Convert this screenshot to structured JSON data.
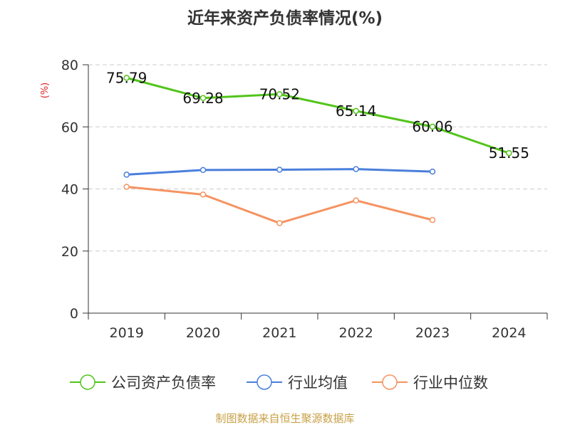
{
  "chart_data": {
    "type": "line",
    "title": "近年来资产负债率情况(%)",
    "ylabel": "(%)",
    "categories": [
      "2019",
      "2020",
      "2021",
      "2022",
      "2023",
      "2024"
    ],
    "ylim": [
      0,
      80
    ],
    "yticks": [
      0,
      20,
      40,
      60,
      80
    ],
    "grid": true,
    "legend_position": "bottom",
    "series": [
      {
        "name": "公司资产负债率",
        "color": "#52c41a",
        "values": [
          75.79,
          69.28,
          70.52,
          65.14,
          60.06,
          51.55
        ],
        "show_labels": true
      },
      {
        "name": "行业均值",
        "color": "#4a7fdc",
        "values": [
          44.6,
          46.1,
          46.2,
          46.4,
          45.6,
          null
        ],
        "show_labels": false
      },
      {
        "name": "行业中位数",
        "color": "#f59361",
        "values": [
          40.7,
          38.2,
          29.0,
          36.3,
          30.0,
          null
        ],
        "show_labels": false
      }
    ]
  },
  "source_text": "制图数据来自恒生聚源数据库"
}
